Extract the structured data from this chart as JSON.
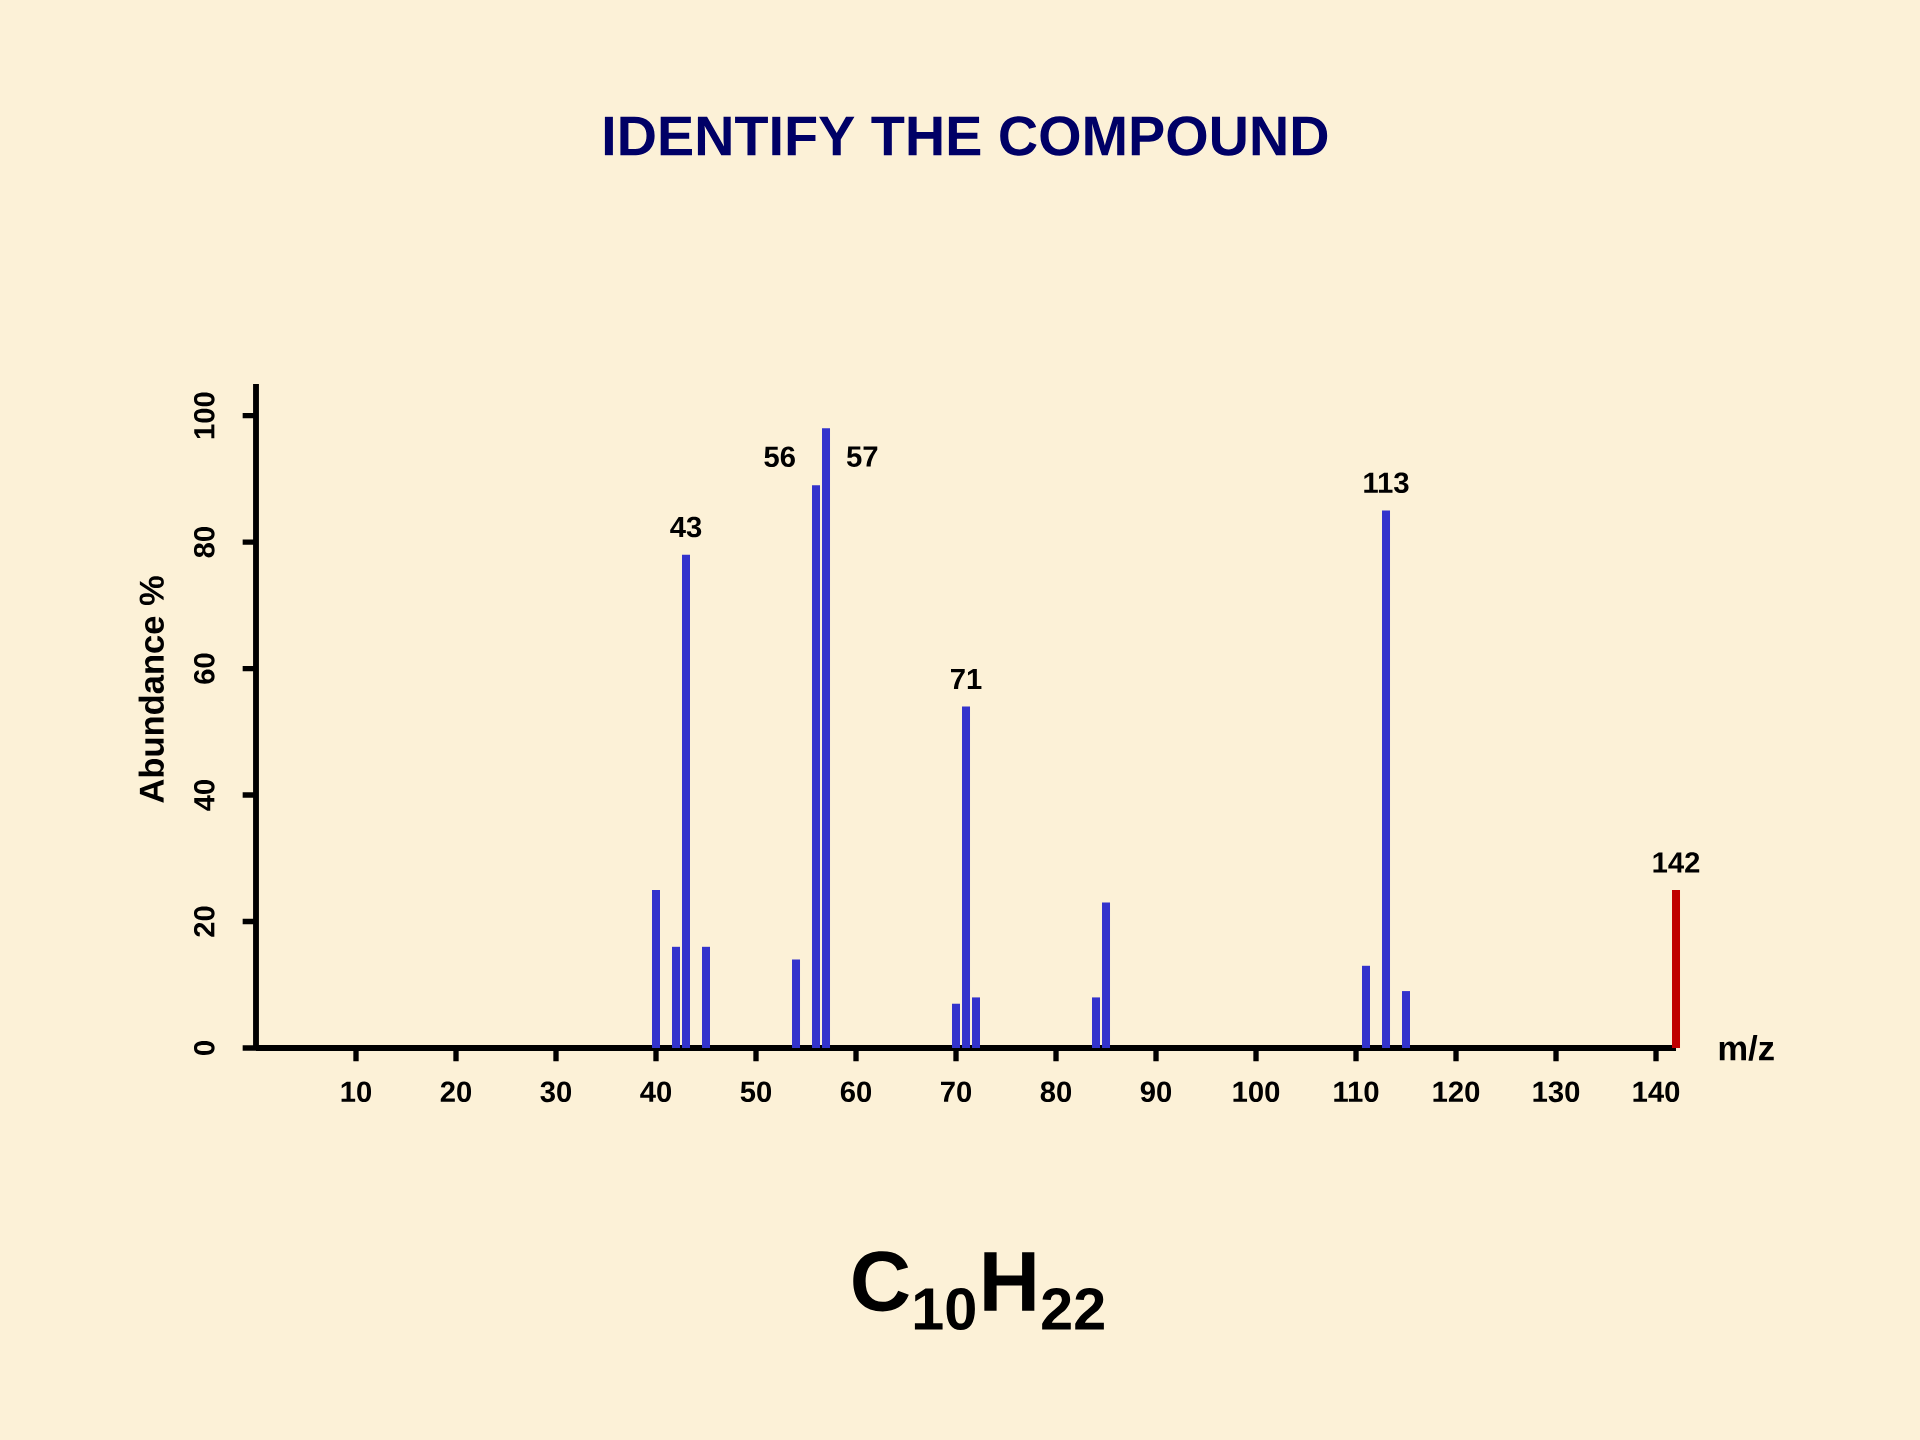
{
  "chart_data": {
    "type": "bar",
    "title": "IDENTIFY THE COMPOUND",
    "xlabel": "m/z",
    "ylabel": "Abundance %",
    "series": [
      {
        "color": "#3333cc",
        "x": [
          40,
          42,
          43,
          45,
          54,
          56,
          57,
          70,
          71,
          72,
          84,
          85,
          111,
          113,
          115
        ],
        "values": [
          25,
          16,
          78,
          16,
          14,
          89,
          98,
          7,
          54,
          8,
          8,
          23,
          13,
          85,
          9
        ]
      },
      {
        "color": "#c00000",
        "x": [
          142
        ],
        "values": [
          25
        ]
      }
    ],
    "xlim": [
      0,
      142
    ],
    "xticks": [
      10,
      20,
      30,
      40,
      50,
      60,
      70,
      80,
      90,
      100,
      110,
      120,
      130,
      140
    ],
    "ylim": [
      0,
      105
    ],
    "yticks": [
      0,
      20,
      40,
      60,
      80,
      100
    ],
    "annotations": [
      {
        "text": "43",
        "x": 43,
        "y": 78
      },
      {
        "text": "56",
        "x": 56,
        "y": 89
      },
      {
        "text": "57",
        "x": 57,
        "y": 98
      },
      {
        "text": "71",
        "x": 71,
        "y": 54
      },
      {
        "text": "113",
        "x": 113,
        "y": 85
      },
      {
        "text": "142",
        "x": 142,
        "y": 25
      },
      "C$_{10}$H$_{22}$"
    ]
  }
}
